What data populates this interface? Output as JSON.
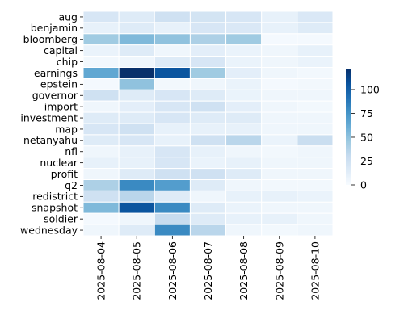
{
  "chart_data": {
    "type": "heatmap",
    "colormap": "Blues",
    "grid": "white cell borders",
    "legend": "colorbar-right",
    "x": [
      "2025-08-04",
      "2025-08-05",
      "2025-08-06",
      "2025-08-07",
      "2025-08-08",
      "2025-08-09",
      "2025-08-10"
    ],
    "y": [
      "aug",
      "benjamin",
      "bloomberg",
      "capital",
      "chip",
      "earnings",
      "epstein",
      "governor",
      "import",
      "investment",
      "map",
      "netanyahu",
      "nfl",
      "nuclear",
      "profit",
      "q2",
      "redistrict",
      "snapshot",
      "soldier",
      "wednesday"
    ],
    "values": [
      [
        20,
        15,
        25,
        22,
        20,
        10,
        18
      ],
      [
        10,
        15,
        10,
        20,
        18,
        10,
        15
      ],
      [
        45,
        55,
        50,
        40,
        45,
        2,
        2
      ],
      [
        8,
        15,
        5,
        12,
        8,
        5,
        10
      ],
      [
        3,
        5,
        15,
        20,
        8,
        5,
        8
      ],
      [
        65,
        122,
        105,
        45,
        12,
        5,
        3
      ],
      [
        2,
        50,
        3,
        5,
        8,
        2,
        3
      ],
      [
        25,
        15,
        20,
        15,
        8,
        5,
        5
      ],
      [
        5,
        12,
        20,
        25,
        12,
        5,
        3
      ],
      [
        15,
        15,
        20,
        15,
        15,
        5,
        5
      ],
      [
        20,
        25,
        10,
        10,
        10,
        5,
        5
      ],
      [
        15,
        20,
        10,
        25,
        35,
        8,
        28
      ],
      [
        5,
        10,
        20,
        10,
        5,
        3,
        5
      ],
      [
        10,
        10,
        20,
        8,
        10,
        5,
        5
      ],
      [
        5,
        15,
        25,
        25,
        15,
        5,
        5
      ],
      [
        40,
        80,
        70,
        15,
        5,
        3,
        3
      ],
      [
        25,
        35,
        15,
        5,
        10,
        10,
        8
      ],
      [
        55,
        105,
        80,
        15,
        8,
        5,
        5
      ],
      [
        2,
        5,
        30,
        15,
        10,
        10,
        5
      ],
      [
        5,
        15,
        80,
        35,
        5,
        3,
        5
      ]
    ],
    "vmin": 0,
    "vmax": 122,
    "colorbar_ticks": [
      0,
      25,
      50,
      75,
      100
    ]
  }
}
